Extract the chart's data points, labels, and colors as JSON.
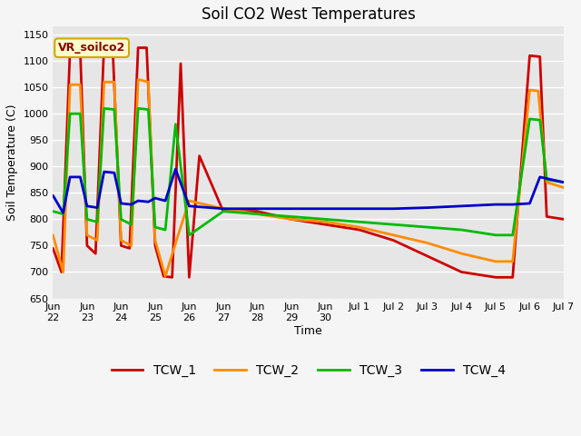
{
  "title": "Soil CO2 West Temperatures",
  "xlabel": "Time",
  "ylabel": "Soil Temperature (C)",
  "ylim": [
    650,
    1165
  ],
  "xlim": [
    22,
    37
  ],
  "annotation_label": "VR_soilco2",
  "background_color": "#e6e6e6",
  "grid_color": "#ffffff",
  "series": {
    "TCW_1": {
      "color": "#cc0000",
      "x": [
        22.0,
        22.25,
        22.5,
        22.8,
        23.0,
        23.25,
        23.5,
        23.75,
        24.0,
        24.25,
        24.5,
        24.75,
        25.0,
        25.25,
        25.5,
        25.75,
        26.0,
        26.3,
        27.0,
        28.0,
        29.0,
        30.0,
        31.0,
        32.0,
        33.0,
        34.0,
        35.0,
        35.5,
        36.0,
        36.3,
        36.5,
        37.0
      ],
      "y": [
        745,
        700,
        1120,
        1120,
        750,
        735,
        1130,
        1130,
        750,
        745,
        1125,
        1125,
        750,
        692,
        690,
        1095,
        690,
        920,
        815,
        815,
        800,
        790,
        780,
        760,
        730,
        700,
        690,
        690,
        1110,
        1108,
        805,
        800
      ]
    },
    "TCW_2": {
      "color": "#ff8c00",
      "x": [
        22.0,
        22.3,
        22.5,
        22.8,
        23.0,
        23.3,
        23.5,
        23.8,
        24.0,
        24.3,
        24.5,
        24.8,
        25.0,
        25.3,
        25.7,
        26.0,
        27.0,
        28.0,
        29.0,
        30.0,
        31.0,
        32.0,
        33.0,
        34.0,
        35.0,
        35.5,
        36.0,
        36.25,
        36.5,
        37.0
      ],
      "y": [
        770,
        700,
        1055,
        1055,
        770,
        760,
        1060,
        1060,
        760,
        750,
        1065,
        1060,
        760,
        692,
        775,
        835,
        820,
        810,
        800,
        795,
        785,
        770,
        755,
        735,
        720,
        720,
        1045,
        1043,
        870,
        860
      ]
    },
    "TCW_3": {
      "color": "#00bb00",
      "x": [
        22.0,
        22.3,
        22.5,
        22.8,
        23.0,
        23.3,
        23.5,
        23.8,
        24.0,
        24.3,
        24.5,
        24.8,
        25.0,
        25.3,
        25.6,
        26.0,
        27.0,
        28.0,
        29.0,
        30.0,
        31.0,
        32.0,
        33.0,
        34.0,
        35.0,
        35.5,
        36.0,
        36.3,
        36.5,
        37.0
      ],
      "y": [
        815,
        810,
        1000,
        1000,
        800,
        795,
        1010,
        1008,
        800,
        790,
        1010,
        1008,
        785,
        780,
        980,
        770,
        815,
        810,
        805,
        800,
        795,
        790,
        785,
        780,
        770,
        770,
        990,
        988,
        875,
        870
      ]
    },
    "TCW_4": {
      "color": "#0000cc",
      "x": [
        22.0,
        22.3,
        22.5,
        22.8,
        23.0,
        23.3,
        23.5,
        23.8,
        24.0,
        24.3,
        24.5,
        24.8,
        25.0,
        25.3,
        25.6,
        26.0,
        27.0,
        28.0,
        29.0,
        30.0,
        31.0,
        32.0,
        33.0,
        34.0,
        35.0,
        35.5,
        36.0,
        36.3,
        37.0
      ],
      "y": [
        845,
        812,
        880,
        880,
        825,
        822,
        890,
        888,
        830,
        828,
        835,
        833,
        840,
        835,
        895,
        825,
        820,
        820,
        820,
        820,
        820,
        820,
        822,
        825,
        828,
        828,
        830,
        880,
        870
      ]
    }
  },
  "xtick_positions": [
    22,
    23,
    24,
    25,
    26,
    27,
    28,
    29,
    30,
    31,
    32,
    33,
    34,
    35,
    36,
    37
  ],
  "xtick_labels": [
    "Jun\n22",
    "Jun\n23",
    "Jun\n24",
    "Jun\n25",
    "Jun\n26",
    "Jun\n27",
    "Jun\n28",
    "Jun\n29",
    "Jun\n30",
    "Jul 1",
    "Jul 2",
    "Jul 3",
    "Jul 4",
    "Jul 5",
    "Jul 6",
    "Jul 7"
  ],
  "ytick_positions": [
    650,
    700,
    750,
    800,
    850,
    900,
    950,
    1000,
    1050,
    1100,
    1150
  ],
  "linewidth": 2.0,
  "legend_entries": [
    "TCW_1",
    "TCW_2",
    "TCW_3",
    "TCW_4"
  ],
  "legend_colors": [
    "#cc0000",
    "#ff8c00",
    "#00bb00",
    "#0000cc"
  ],
  "figsize": [
    6.4,
    4.8
  ],
  "dpi": 100
}
